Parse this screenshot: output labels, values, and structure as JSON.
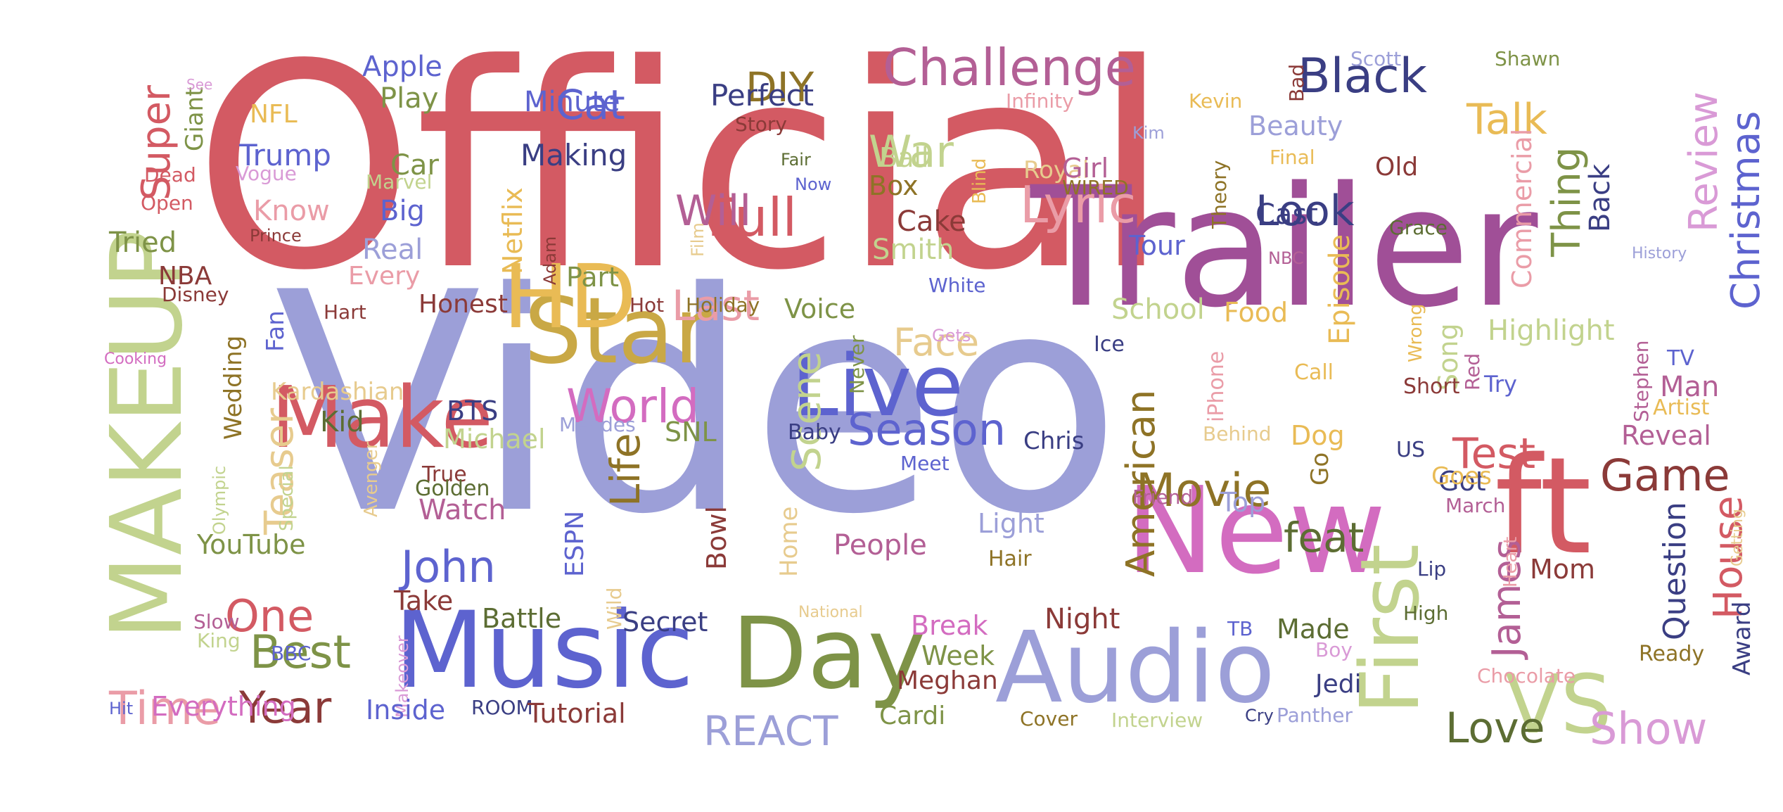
{
  "wordcloud": {
    "palette": {
      "red": "#d35a63",
      "purple": "#a04f97",
      "lavender": "#9c9fd8",
      "blue": "#5d63cf",
      "navy": "#3a3e83",
      "gold": "#c9a845",
      "yellow": "#e9bb55",
      "sage": "#c2d38e",
      "olive": "#7e9347",
      "darkolive": "#5c6d33",
      "brown": "#8b3a38",
      "pink": "#d36cc0",
      "lightpink": "#ea9ca7",
      "lightpurple": "#d99ad6",
      "bronze": "#8e7326",
      "tan": "#e7cb8e",
      "mauve": "#b35f95"
    },
    "words": [
      {
        "text": "Official",
        "color": "red"
      },
      {
        "text": "Video",
        "color": "lavender"
      },
      {
        "text": "Trailer",
        "color": "purple"
      },
      {
        "text": "MAKEUP",
        "color": "sage"
      },
      {
        "text": "New",
        "color": "pink"
      },
      {
        "text": "ft",
        "color": "red"
      },
      {
        "text": "Music",
        "color": "blue"
      },
      {
        "text": "Audio",
        "color": "lavender"
      },
      {
        "text": "Day",
        "color": "olive"
      },
      {
        "text": "Star",
        "color": "gold"
      },
      {
        "text": "Make",
        "color": "red"
      },
      {
        "text": "Live",
        "color": "blue"
      },
      {
        "text": "First",
        "color": "sage"
      },
      {
        "text": "VS",
        "color": "sage"
      },
      {
        "text": "HD",
        "color": "yellow"
      },
      {
        "text": "Challenge",
        "color": "mauve"
      },
      {
        "text": "Black",
        "color": "navy"
      },
      {
        "text": "Full",
        "color": "red"
      },
      {
        "text": "Lyric",
        "color": "lightpink"
      },
      {
        "text": "Season",
        "color": "blue"
      },
      {
        "text": "World",
        "color": "pink"
      },
      {
        "text": "Game",
        "color": "brown"
      },
      {
        "text": "Show",
        "color": "lightpurple"
      },
      {
        "text": "Movie",
        "color": "bronze"
      },
      {
        "text": "Test",
        "color": "red"
      },
      {
        "text": "Time",
        "color": "lightpink"
      },
      {
        "text": "Year",
        "color": "brown"
      },
      {
        "text": "Best",
        "color": "olive"
      },
      {
        "text": "One",
        "color": "red"
      },
      {
        "text": "John",
        "color": "blue"
      },
      {
        "text": "REACT",
        "color": "lavender"
      },
      {
        "text": "Love",
        "color": "darkolive"
      },
      {
        "text": "feat",
        "color": "darkolive"
      },
      {
        "text": "Look",
        "color": "navy"
      },
      {
        "text": "Will",
        "color": "mauve"
      },
      {
        "text": "War",
        "color": "sage"
      },
      {
        "text": "Talk",
        "color": "yellow"
      },
      {
        "text": "Cat",
        "color": "blue"
      },
      {
        "text": "DIY",
        "color": "bronze"
      },
      {
        "text": "Last",
        "color": "lightpink"
      },
      {
        "text": "Face",
        "color": "tan"
      },
      {
        "text": "Review",
        "color": "lightpurple"
      },
      {
        "text": "Christmas",
        "color": "blue"
      },
      {
        "text": "Thing",
        "color": "olive"
      },
      {
        "text": "Super",
        "color": "red"
      },
      {
        "text": "Teaser",
        "color": "tan"
      },
      {
        "text": "Life",
        "color": "bronze"
      },
      {
        "text": "Scene",
        "color": "sage"
      },
      {
        "text": "American",
        "color": "bronze"
      },
      {
        "text": "James",
        "color": "mauve"
      },
      {
        "text": "House",
        "color": "red"
      },
      {
        "text": "Question",
        "color": "navy"
      },
      {
        "text": "Highlight",
        "color": "sage"
      },
      {
        "text": "Episode",
        "color": "yellow"
      },
      {
        "text": "Commercial",
        "color": "lightpink"
      },
      {
        "text": "Song",
        "color": "sage"
      },
      {
        "text": "Back",
        "color": "navy"
      },
      {
        "text": "Perfect",
        "color": "navy"
      },
      {
        "text": "Minute",
        "color": "blue"
      },
      {
        "text": "Making",
        "color": "navy"
      },
      {
        "text": "Apple",
        "color": "blue"
      },
      {
        "text": "Play",
        "color": "olive"
      },
      {
        "text": "NFL",
        "color": "yellow"
      },
      {
        "text": "Trump",
        "color": "blue"
      },
      {
        "text": "Know",
        "color": "lightpink"
      },
      {
        "text": "Giant",
        "color": "olive"
      },
      {
        "text": "See",
        "color": "lightpurple"
      },
      {
        "text": "Dead",
        "color": "red"
      },
      {
        "text": "Open",
        "color": "red"
      },
      {
        "text": "Vogue",
        "color": "lightpurple"
      },
      {
        "text": "Prince",
        "color": "brown"
      },
      {
        "text": "Tried",
        "color": "olive"
      },
      {
        "text": "Car",
        "color": "olive"
      },
      {
        "text": "Big",
        "color": "blue"
      },
      {
        "text": "Real",
        "color": "lavender"
      },
      {
        "text": "Marvel",
        "color": "sage"
      },
      {
        "text": "Netflix",
        "color": "yellow"
      },
      {
        "text": "Every",
        "color": "lightpink"
      },
      {
        "text": "Part",
        "color": "olive"
      },
      {
        "text": "Adam",
        "color": "brown"
      },
      {
        "text": "Film",
        "color": "tan"
      },
      {
        "text": "Fair",
        "color": "darkolive"
      },
      {
        "text": "Now",
        "color": "blue"
      },
      {
        "text": "Story",
        "color": "brown"
      },
      {
        "text": "Ball",
        "color": "sage"
      },
      {
        "text": "Box",
        "color": "bronze"
      },
      {
        "text": "Blind",
        "color": "yellow"
      },
      {
        "text": "Cake",
        "color": "brown"
      },
      {
        "text": "Smith",
        "color": "sage"
      },
      {
        "text": "White",
        "color": "blue"
      },
      {
        "text": "Royal",
        "color": "tan"
      },
      {
        "text": "Girl",
        "color": "mauve"
      },
      {
        "text": "WIRED",
        "color": "bronze"
      },
      {
        "text": "Infinity",
        "color": "lightpink"
      },
      {
        "text": "Kim",
        "color": "lavender"
      },
      {
        "text": "Tour",
        "color": "blue"
      },
      {
        "text": "Theory",
        "color": "bronze"
      },
      {
        "text": "Bad",
        "color": "brown"
      },
      {
        "text": "Kevin",
        "color": "yellow"
      },
      {
        "text": "Beauty",
        "color": "lavender"
      },
      {
        "text": "Final",
        "color": "yellow"
      },
      {
        "text": "Old",
        "color": "brown"
      },
      {
        "text": "Cast",
        "color": "navy"
      },
      {
        "text": "NBC",
        "color": "mauve"
      },
      {
        "text": "Scott",
        "color": "lavender"
      },
      {
        "text": "Shawn",
        "color": "olive"
      },
      {
        "text": "Grace",
        "color": "darkolive"
      },
      {
        "text": "History",
        "color": "lavender"
      },
      {
        "text": "NBA",
        "color": "brown"
      },
      {
        "text": "Disney",
        "color": "brown"
      },
      {
        "text": "Cooking",
        "color": "pink"
      },
      {
        "text": "Fan",
        "color": "blue"
      },
      {
        "text": "Hart",
        "color": "brown"
      },
      {
        "text": "Honest",
        "color": "brown"
      },
      {
        "text": "Hot",
        "color": "brown"
      },
      {
        "text": "Holiday",
        "color": "bronze"
      },
      {
        "text": "Voice",
        "color": "olive"
      },
      {
        "text": "Wedding",
        "color": "bronze"
      },
      {
        "text": "Kardashian",
        "color": "tan"
      },
      {
        "text": "BTS",
        "color": "navy"
      },
      {
        "text": "Kid",
        "color": "darkolive"
      },
      {
        "text": "Michael",
        "color": "sage"
      },
      {
        "text": "Mendes",
        "color": "lavender"
      },
      {
        "text": "SNL",
        "color": "olive"
      },
      {
        "text": "Never",
        "color": "olive"
      },
      {
        "text": "Baby",
        "color": "navy"
      },
      {
        "text": "Gets",
        "color": "lightpurple"
      },
      {
        "text": "School",
        "color": "sage"
      },
      {
        "text": "Food",
        "color": "yellow"
      },
      {
        "text": "Ice",
        "color": "navy"
      },
      {
        "text": "Wrong",
        "color": "yellow"
      },
      {
        "text": "Call",
        "color": "yellow"
      },
      {
        "text": "Red",
        "color": "mauve"
      },
      {
        "text": "Stephen",
        "color": "mauve"
      },
      {
        "text": "TV",
        "color": "blue"
      },
      {
        "text": "Man",
        "color": "mauve"
      },
      {
        "text": "Artist",
        "color": "yellow"
      },
      {
        "text": "Try",
        "color": "blue"
      },
      {
        "text": "Short",
        "color": "brown"
      },
      {
        "text": "iPhone",
        "color": "lightpink"
      },
      {
        "text": "Chris",
        "color": "navy"
      },
      {
        "text": "Behind",
        "color": "tan"
      },
      {
        "text": "Dog",
        "color": "yellow"
      },
      {
        "text": "Go",
        "color": "bronze"
      },
      {
        "text": "US",
        "color": "navy"
      },
      {
        "text": "Reveal",
        "color": "mauve"
      },
      {
        "text": "Got",
        "color": "navy"
      },
      {
        "text": "Goes",
        "color": "yellow"
      },
      {
        "text": "Top",
        "color": "lavender"
      },
      {
        "text": "Friend",
        "color": "mauve"
      },
      {
        "text": "March",
        "color": "mauve"
      },
      {
        "text": "Getting",
        "color": "tan"
      },
      {
        "text": "Special",
        "color": "sage"
      },
      {
        "text": "Olympic",
        "color": "sage"
      },
      {
        "text": "Avenger",
        "color": "tan"
      },
      {
        "text": "True",
        "color": "brown"
      },
      {
        "text": "Golden",
        "color": "darkolive"
      },
      {
        "text": "Watch",
        "color": "mauve"
      },
      {
        "text": "ESPN",
        "color": "blue"
      },
      {
        "text": "Bowl",
        "color": "brown"
      },
      {
        "text": "Home",
        "color": "tan"
      },
      {
        "text": "Meet",
        "color": "blue"
      },
      {
        "text": "Light",
        "color": "lavender"
      },
      {
        "text": "People",
        "color": "mauve"
      },
      {
        "text": "Hair",
        "color": "bronze"
      },
      {
        "text": "YouTube",
        "color": "olive"
      },
      {
        "text": "Take",
        "color": "brown"
      },
      {
        "text": "Makeover",
        "color": "lightpurple"
      },
      {
        "text": "Battle",
        "color": "darkolive"
      },
      {
        "text": "Wild",
        "color": "tan"
      },
      {
        "text": "Secret",
        "color": "navy"
      },
      {
        "text": "National",
        "color": "tan"
      },
      {
        "text": "Break",
        "color": "pink"
      },
      {
        "text": "Night",
        "color": "brown"
      },
      {
        "text": "TB",
        "color": "blue"
      },
      {
        "text": "Made",
        "color": "darkolive"
      },
      {
        "text": "Week",
        "color": "olive"
      },
      {
        "text": "Meghan",
        "color": "brown"
      },
      {
        "text": "Cardi",
        "color": "olive"
      },
      {
        "text": "Cover",
        "color": "bronze"
      },
      {
        "text": "Interview",
        "color": "sage"
      },
      {
        "text": "Cry",
        "color": "navy"
      },
      {
        "text": "Panther",
        "color": "lavender"
      },
      {
        "text": "Jedi",
        "color": "navy"
      },
      {
        "text": "Boy",
        "color": "lightpurple"
      },
      {
        "text": "High",
        "color": "darkolive"
      },
      {
        "text": "Chocolate",
        "color": "lightpink"
      },
      {
        "text": "Lip",
        "color": "navy"
      },
      {
        "text": "Heart",
        "color": "lightpink"
      },
      {
        "text": "Mom",
        "color": "brown"
      },
      {
        "text": "Ready",
        "color": "bronze"
      },
      {
        "text": "Award",
        "color": "navy"
      },
      {
        "text": "Slow",
        "color": "mauve"
      },
      {
        "text": "King",
        "color": "sage"
      },
      {
        "text": "BBC",
        "color": "blue"
      },
      {
        "text": "Hit",
        "color": "blue"
      },
      {
        "text": "Everything",
        "color": "pink"
      },
      {
        "text": "Inside",
        "color": "blue"
      },
      {
        "text": "ROOM",
        "color": "navy"
      },
      {
        "text": "Tutorial",
        "color": "brown"
      }
    ]
  }
}
